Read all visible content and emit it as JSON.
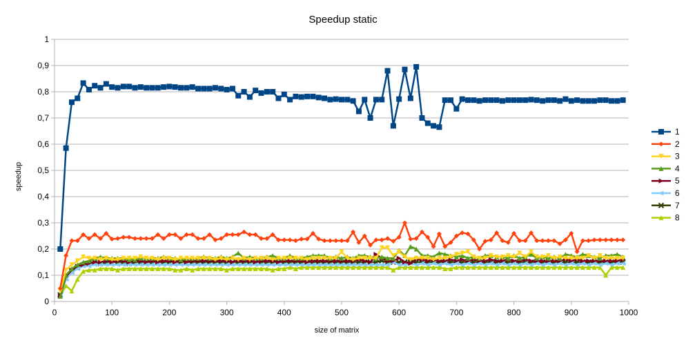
{
  "chart_data": {
    "type": "line",
    "title": "Speedup static",
    "xlabel": "size of matrix",
    "ylabel": "speedup",
    "xlim": [
      0,
      1000
    ],
    "ylim": [
      0,
      1
    ],
    "xticks": [
      0,
      100,
      200,
      300,
      400,
      500,
      600,
      700,
      800,
      900,
      1000
    ],
    "yticks": [
      0,
      0.1,
      0.2,
      0.3,
      0.4,
      0.5,
      0.6,
      0.7,
      0.8,
      0.9,
      1
    ],
    "ytick_labels": [
      "0",
      "0,1",
      "0,2",
      "0,3",
      "0,4",
      "0,5",
      "0,6",
      "0,7",
      "0,8",
      "0,9",
      "1"
    ],
    "grid": "horizontal",
    "legend_position": "right",
    "x": [
      10,
      20,
      30,
      40,
      50,
      60,
      70,
      80,
      90,
      100,
      110,
      120,
      130,
      140,
      150,
      160,
      170,
      180,
      190,
      200,
      210,
      220,
      230,
      240,
      250,
      260,
      270,
      280,
      290,
      300,
      310,
      320,
      330,
      340,
      350,
      360,
      370,
      380,
      390,
      400,
      410,
      420,
      430,
      440,
      450,
      460,
      470,
      480,
      490,
      500,
      510,
      520,
      530,
      540,
      550,
      560,
      570,
      580,
      590,
      600,
      610,
      620,
      630,
      640,
      650,
      660,
      670,
      680,
      690,
      700,
      710,
      720,
      730,
      740,
      750,
      760,
      770,
      780,
      790,
      800,
      810,
      820,
      830,
      840,
      850,
      860,
      870,
      880,
      890,
      900,
      910,
      920,
      930,
      940,
      950,
      960,
      970,
      980,
      990
    ],
    "series": [
      {
        "name": "1",
        "color": "#004586",
        "marker": "square",
        "values": [
          0.2,
          0.585,
          0.76,
          0.775,
          0.833,
          0.808,
          0.823,
          0.815,
          0.83,
          0.818,
          0.815,
          0.82,
          0.82,
          0.815,
          0.818,
          0.815,
          0.815,
          0.815,
          0.818,
          0.82,
          0.818,
          0.815,
          0.815,
          0.818,
          0.812,
          0.812,
          0.812,
          0.815,
          0.812,
          0.808,
          0.812,
          0.785,
          0.8,
          0.78,
          0.805,
          0.795,
          0.8,
          0.8,
          0.775,
          0.79,
          0.77,
          0.782,
          0.78,
          0.782,
          0.782,
          0.778,
          0.775,
          0.77,
          0.772,
          0.77,
          0.77,
          0.765,
          0.725,
          0.77,
          0.7,
          0.77,
          0.77,
          0.88,
          0.67,
          0.772,
          0.885,
          0.775,
          0.895,
          0.7,
          0.68,
          0.67,
          0.665,
          0.768,
          0.768,
          0.735,
          0.772,
          0.768,
          0.768,
          0.765,
          0.768,
          0.768,
          0.768,
          0.765,
          0.768,
          0.768,
          0.768,
          0.768,
          0.77,
          0.768,
          0.765,
          0.768,
          0.768,
          0.765,
          0.772,
          0.765,
          0.768,
          0.765,
          0.765,
          0.765,
          0.768,
          0.768,
          0.765,
          0.765,
          0.768
        ]
      },
      {
        "name": "2",
        "color": "#ff420e",
        "marker": "diamond",
        "values": [
          0.05,
          0.175,
          0.232,
          0.232,
          0.255,
          0.24,
          0.255,
          0.24,
          0.26,
          0.238,
          0.24,
          0.245,
          0.245,
          0.24,
          0.24,
          0.24,
          0.24,
          0.255,
          0.24,
          0.255,
          0.255,
          0.24,
          0.255,
          0.255,
          0.24,
          0.24,
          0.255,
          0.235,
          0.24,
          0.255,
          0.255,
          0.255,
          0.265,
          0.255,
          0.255,
          0.24,
          0.24,
          0.255,
          0.235,
          0.235,
          0.235,
          0.232,
          0.238,
          0.238,
          0.26,
          0.238,
          0.232,
          0.232,
          0.232,
          0.232,
          0.232,
          0.265,
          0.225,
          0.25,
          0.215,
          0.235,
          0.235,
          0.24,
          0.23,
          0.245,
          0.3,
          0.238,
          0.24,
          0.265,
          0.245,
          0.21,
          0.258,
          0.21,
          0.225,
          0.25,
          0.262,
          0.258,
          0.235,
          0.2,
          0.23,
          0.235,
          0.262,
          0.232,
          0.225,
          0.26,
          0.232,
          0.232,
          0.262,
          0.232,
          0.232,
          0.232,
          0.232,
          0.22,
          0.235,
          0.26,
          0.19,
          0.232,
          0.232,
          0.235,
          0.235,
          0.235,
          0.235,
          0.235,
          0.235
        ]
      },
      {
        "name": "3",
        "color": "#ffd320",
        "marker": "triangle-down",
        "values": [
          0.04,
          0.12,
          0.14,
          0.155,
          0.17,
          0.165,
          0.165,
          0.16,
          0.165,
          0.16,
          0.16,
          0.165,
          0.165,
          0.165,
          0.17,
          0.165,
          0.165,
          0.16,
          0.165,
          0.165,
          0.16,
          0.165,
          0.165,
          0.165,
          0.165,
          0.165,
          0.165,
          0.16,
          0.165,
          0.16,
          0.165,
          0.16,
          0.165,
          0.16,
          0.165,
          0.165,
          0.165,
          0.16,
          0.165,
          0.165,
          0.165,
          0.165,
          0.165,
          0.16,
          0.165,
          0.165,
          0.165,
          0.165,
          0.165,
          0.19,
          0.165,
          0.16,
          0.165,
          0.165,
          0.165,
          0.165,
          0.205,
          0.205,
          0.175,
          0.19,
          0.17,
          0.16,
          0.165,
          0.165,
          0.165,
          0.16,
          0.165,
          0.165,
          0.17,
          0.18,
          0.185,
          0.19,
          0.17,
          0.165,
          0.165,
          0.175,
          0.17,
          0.17,
          0.175,
          0.17,
          0.185,
          0.17,
          0.19,
          0.17,
          0.17,
          0.175,
          0.165,
          0.17,
          0.165,
          0.165,
          0.165,
          0.165,
          0.175,
          0.165,
          0.175,
          0.165,
          0.165,
          0.165,
          0.165
        ]
      },
      {
        "name": "4",
        "color": "#579d1c",
        "marker": "triangle-up",
        "values": [
          0.02,
          0.1,
          0.125,
          0.14,
          0.15,
          0.155,
          0.165,
          0.17,
          0.165,
          0.165,
          0.165,
          0.165,
          0.16,
          0.16,
          0.165,
          0.165,
          0.165,
          0.165,
          0.17,
          0.165,
          0.165,
          0.16,
          0.165,
          0.165,
          0.165,
          0.17,
          0.165,
          0.165,
          0.17,
          0.165,
          0.17,
          0.185,
          0.165,
          0.17,
          0.165,
          0.165,
          0.17,
          0.175,
          0.165,
          0.165,
          0.175,
          0.165,
          0.165,
          0.17,
          0.175,
          0.175,
          0.175,
          0.165,
          0.17,
          0.165,
          0.17,
          0.165,
          0.175,
          0.175,
          0.17,
          0.165,
          0.17,
          0.165,
          0.165,
          0.195,
          0.175,
          0.21,
          0.2,
          0.175,
          0.175,
          0.17,
          0.185,
          0.18,
          0.175,
          0.17,
          0.175,
          0.165,
          0.17,
          0.165,
          0.175,
          0.175,
          0.17,
          0.17,
          0.165,
          0.175,
          0.165,
          0.17,
          0.18,
          0.165,
          0.17,
          0.165,
          0.17,
          0.165,
          0.18,
          0.175,
          0.17,
          0.18,
          0.175,
          0.17,
          0.165,
          0.175,
          0.175,
          0.18,
          0.17
        ]
      },
      {
        "name": "5",
        "color": "#7e0021",
        "marker": "triangle-right",
        "values": [
          0.02,
          0.095,
          0.12,
          0.135,
          0.14,
          0.145,
          0.15,
          0.15,
          0.155,
          0.15,
          0.155,
          0.155,
          0.15,
          0.155,
          0.155,
          0.15,
          0.155,
          0.15,
          0.155,
          0.155,
          0.15,
          0.155,
          0.15,
          0.155,
          0.155,
          0.155,
          0.155,
          0.155,
          0.155,
          0.155,
          0.15,
          0.155,
          0.155,
          0.155,
          0.15,
          0.155,
          0.155,
          0.155,
          0.15,
          0.155,
          0.155,
          0.155,
          0.155,
          0.15,
          0.155,
          0.155,
          0.155,
          0.155,
          0.155,
          0.155,
          0.155,
          0.155,
          0.16,
          0.155,
          0.15,
          0.18,
          0.165,
          0.155,
          0.155,
          0.165,
          0.15,
          0.145,
          0.16,
          0.16,
          0.155,
          0.16,
          0.155,
          0.155,
          0.16,
          0.155,
          0.16,
          0.155,
          0.16,
          0.155,
          0.155,
          0.16,
          0.155,
          0.155,
          0.16,
          0.155,
          0.155,
          0.16,
          0.155,
          0.155,
          0.155,
          0.155,
          0.155,
          0.155,
          0.16,
          0.155,
          0.16,
          0.155,
          0.155,
          0.155,
          0.155,
          0.155,
          0.155,
          0.155,
          0.16
        ]
      },
      {
        "name": "6",
        "color": "#83caff",
        "marker": "triangle-left",
        "values": [
          0.02,
          0.085,
          0.11,
          0.125,
          0.135,
          0.135,
          0.14,
          0.14,
          0.14,
          0.14,
          0.14,
          0.14,
          0.14,
          0.14,
          0.14,
          0.14,
          0.14,
          0.14,
          0.14,
          0.14,
          0.14,
          0.14,
          0.14,
          0.14,
          0.14,
          0.14,
          0.14,
          0.14,
          0.14,
          0.14,
          0.14,
          0.14,
          0.14,
          0.14,
          0.14,
          0.14,
          0.14,
          0.14,
          0.14,
          0.14,
          0.14,
          0.14,
          0.14,
          0.14,
          0.14,
          0.14,
          0.14,
          0.14,
          0.14,
          0.14,
          0.14,
          0.14,
          0.14,
          0.14,
          0.14,
          0.14,
          0.14,
          0.14,
          0.15,
          0.14,
          0.14,
          0.145,
          0.14,
          0.145,
          0.14,
          0.145,
          0.14,
          0.145,
          0.14,
          0.145,
          0.14,
          0.145,
          0.14,
          0.145,
          0.14,
          0.145,
          0.14,
          0.145,
          0.14,
          0.145,
          0.14,
          0.145,
          0.14,
          0.145,
          0.14,
          0.145,
          0.14,
          0.145,
          0.14,
          0.145,
          0.14,
          0.145,
          0.14,
          0.145,
          0.14,
          0.145,
          0.14,
          0.145,
          0.145
        ]
      },
      {
        "name": "7",
        "color": "#314004",
        "marker": "x",
        "values": [
          0.025,
          0.09,
          0.115,
          0.13,
          0.14,
          0.145,
          0.15,
          0.145,
          0.15,
          0.15,
          0.15,
          0.15,
          0.145,
          0.15,
          0.15,
          0.15,
          0.15,
          0.15,
          0.15,
          0.15,
          0.15,
          0.15,
          0.15,
          0.15,
          0.15,
          0.15,
          0.15,
          0.15,
          0.15,
          0.15,
          0.15,
          0.15,
          0.15,
          0.15,
          0.15,
          0.15,
          0.15,
          0.15,
          0.15,
          0.15,
          0.15,
          0.15,
          0.15,
          0.15,
          0.15,
          0.15,
          0.15,
          0.15,
          0.15,
          0.15,
          0.15,
          0.15,
          0.15,
          0.15,
          0.15,
          0.15,
          0.155,
          0.15,
          0.15,
          0.15,
          0.15,
          0.15,
          0.15,
          0.15,
          0.15,
          0.15,
          0.15,
          0.15,
          0.15,
          0.15,
          0.15,
          0.15,
          0.15,
          0.15,
          0.15,
          0.15,
          0.15,
          0.15,
          0.15,
          0.15,
          0.15,
          0.15,
          0.15,
          0.15,
          0.15,
          0.15,
          0.15,
          0.15,
          0.15,
          0.15,
          0.15,
          0.15,
          0.15,
          0.15,
          0.15,
          0.15,
          0.15,
          0.15,
          0.15
        ]
      },
      {
        "name": "8",
        "color": "#aecf00",
        "marker": "triangle-up",
        "values": [
          0.02,
          0.06,
          0.04,
          0.085,
          0.115,
          0.12,
          0.12,
          0.125,
          0.125,
          0.125,
          0.12,
          0.125,
          0.125,
          0.125,
          0.125,
          0.125,
          0.125,
          0.125,
          0.125,
          0.125,
          0.12,
          0.12,
          0.125,
          0.12,
          0.125,
          0.125,
          0.125,
          0.125,
          0.125,
          0.12,
          0.125,
          0.125,
          0.125,
          0.125,
          0.125,
          0.125,
          0.125,
          0.12,
          0.125,
          0.125,
          0.13,
          0.125,
          0.13,
          0.13,
          0.13,
          0.13,
          0.13,
          0.13,
          0.13,
          0.13,
          0.13,
          0.13,
          0.13,
          0.13,
          0.13,
          0.13,
          0.13,
          0.13,
          0.12,
          0.13,
          0.13,
          0.13,
          0.13,
          0.13,
          0.13,
          0.13,
          0.13,
          0.125,
          0.125,
          0.13,
          0.13,
          0.13,
          0.13,
          0.13,
          0.13,
          0.13,
          0.13,
          0.13,
          0.13,
          0.13,
          0.13,
          0.13,
          0.13,
          0.13,
          0.13,
          0.13,
          0.13,
          0.13,
          0.13,
          0.13,
          0.13,
          0.13,
          0.13,
          0.13,
          0.13,
          0.1,
          0.13,
          0.13,
          0.13
        ]
      }
    ]
  }
}
